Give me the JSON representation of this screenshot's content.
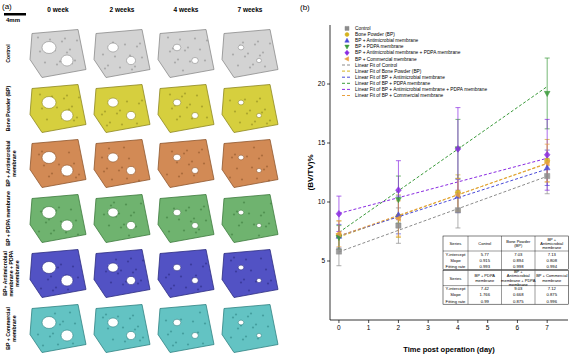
{
  "chart_data": {
    "type": "line",
    "panel_a": {
      "label": "(a)",
      "scale_bar": "4mm",
      "columns": [
        "0 week",
        "2 weeks",
        "4 weeks",
        "7 weeks"
      ],
      "rows": [
        "Control",
        "Bone Powder (BP)",
        "BP + Antimicrobial membrane",
        "BP + PDPA membrane",
        "BP+ Antimicrobial membrane + PDPA membrane",
        "BP + Commercial membrane"
      ]
    },
    "panel_label": "(b)",
    "x_label": "Time post operation (day)",
    "y_label": "(BV/TV)%",
    "x": [
      0,
      2,
      4,
      7
    ],
    "xlim": [
      -0.3,
      7.7
    ],
    "xticks": [
      0,
      1,
      2,
      3,
      4,
      5,
      6,
      7
    ],
    "ylim": [
      0,
      25
    ],
    "yticks": [
      5,
      10,
      15,
      20
    ],
    "legend": "upper left",
    "series": [
      {
        "name": "Control",
        "color": "#8c8c8c",
        "marker": "square",
        "line_style": "dashed",
        "values": [
          5.8,
          8.0,
          9.3,
          12.2
        ],
        "errors": [
          1.2,
          1.5,
          1.5,
          1.5
        ],
        "fit_name": "Linear Fit of Control",
        "fit": {
          "intercept": 5.77,
          "slope": 0.915,
          "fitting_rate": 0.993
        }
      },
      {
        "name": "Bone Powder (BP)",
        "color": "#d4b21f",
        "marker": "circle",
        "line_style": "dashed",
        "values": [
          7.2,
          8.8,
          10.8,
          13.5
        ],
        "errors": [
          1.2,
          1.8,
          1.5,
          1.8
        ],
        "fit_name": "Linear Fit of Bone Powder (BP)",
        "fit": {
          "intercept": 7.03,
          "slope": 0.894,
          "fitting_rate": 0.998
        }
      },
      {
        "name": "BP + Antimicrobial membrane",
        "color": "#4a4ad8",
        "marker": "triangle",
        "line_style": "dashed",
        "values": [
          7.1,
          8.9,
          10.5,
          12.9
        ],
        "errors": [
          1.0,
          1.6,
          1.4,
          1.5
        ],
        "fit_name": "Linear Fit of BP + Antimicrobial membrane",
        "fit": {
          "intercept": 7.13,
          "slope": 0.808,
          "fitting_rate": 0.994
        }
      },
      {
        "name": "BP + PDPA membrane",
        "color": "#3a9a3a",
        "marker": "triangle-down",
        "line_style": "dashed",
        "values": [
          7.0,
          10.2,
          14.5,
          19.2
        ],
        "errors": [
          1.0,
          2.0,
          2.5,
          3.0
        ],
        "fit_name": "Linear Fit of BP + PDPA membrane",
        "fit": {
          "intercept": 7.42,
          "slope": 1.766,
          "fitting_rate": 0.99
        }
      },
      {
        "name": "BP + Antimicrobial membrane + PDPA membrane",
        "color": "#8a2be2",
        "marker": "diamond",
        "line_style": "dashed",
        "values": [
          9.0,
          11.0,
          14.5,
          14.0
        ],
        "errors": [
          1.5,
          2.5,
          3.5,
          3.0
        ],
        "fit_name": "Linear Fit of BP + Antimicrobial membrane + PDPA membrane",
        "fit": {
          "intercept": 9.03,
          "slope": 0.668,
          "fitting_rate": 0.875
        }
      },
      {
        "name": "BP + Commercial membrane",
        "color": "#e8a040",
        "marker": "triangle-left",
        "line_style": "dashed",
        "values": [
          7.3,
          8.6,
          10.6,
          13.3
        ],
        "errors": [
          1.1,
          1.5,
          1.4,
          1.6
        ],
        "fit_name": "Linear Fit of BP + Commercial membrane",
        "fit": {
          "intercept": 7.12,
          "slope": 0.875,
          "fitting_rate": 0.996
        }
      }
    ],
    "table": {
      "header": "Series",
      "row_labels": [
        "Y-intercept",
        "Slope",
        "Fitting rate"
      ]
    }
  }
}
